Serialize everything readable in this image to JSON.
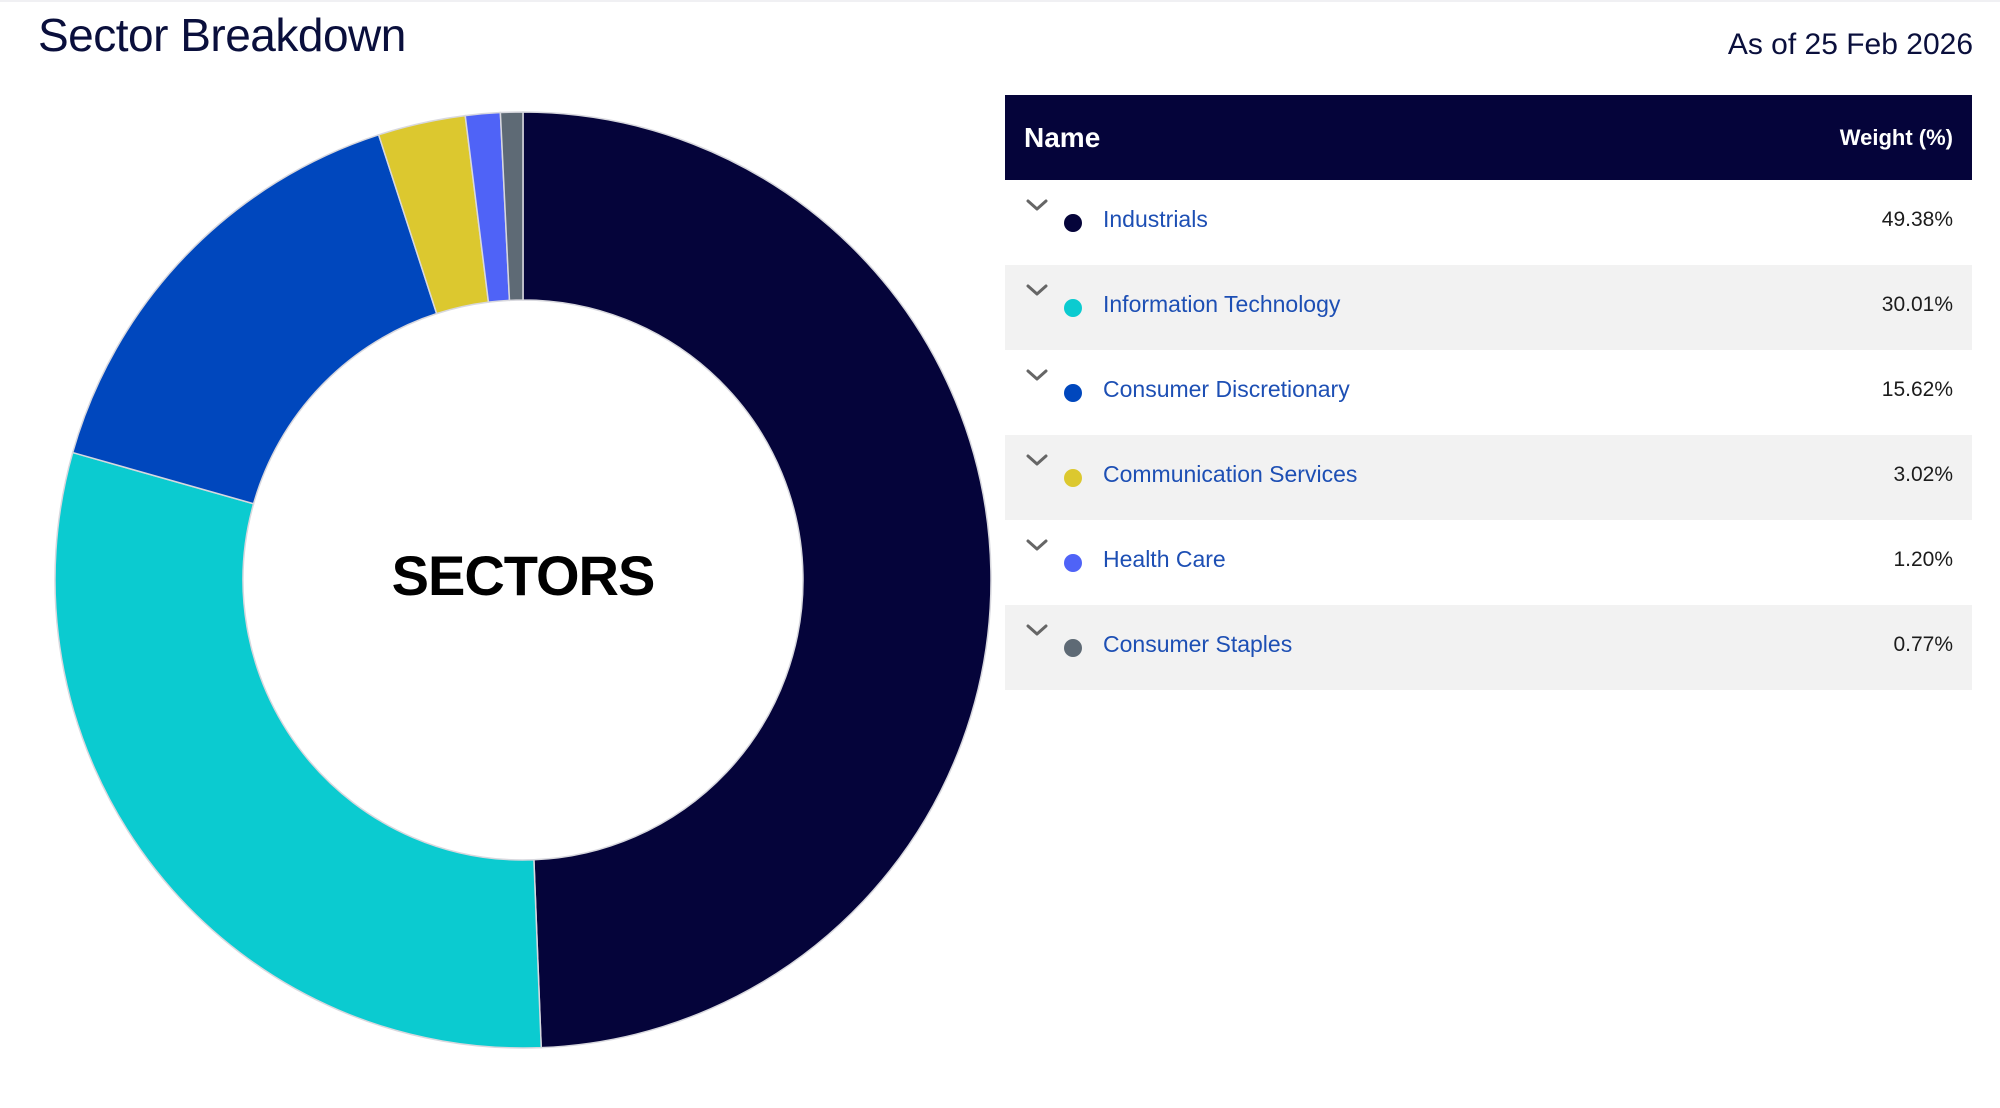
{
  "header": {
    "title": "Sector Breakdown",
    "as_of": "As of 25 Feb 2026"
  },
  "table": {
    "col_name": "Name",
    "col_weight": "Weight (%)",
    "rows": [
      {
        "name": "Industrials",
        "weight": "49.38%",
        "color": "#05043a"
      },
      {
        "name": "Information Technology",
        "weight": "30.01%",
        "color": "#0bcbd0"
      },
      {
        "name": "Consumer Discretionary",
        "weight": "15.62%",
        "color": "#0047bd"
      },
      {
        "name": "Communication Services",
        "weight": "3.02%",
        "color": "#dcc82f"
      },
      {
        "name": "Health Care",
        "weight": "1.20%",
        "color": "#4f63f7"
      },
      {
        "name": "Consumer Staples",
        "weight": "0.77%",
        "color": "#5e6a75"
      }
    ]
  },
  "chart_data": {
    "type": "pie",
    "variant": "donut",
    "center_label": "SECTORS",
    "start": "top, clockwise",
    "categories": [
      "Industrials",
      "Information Technology",
      "Consumer Discretionary",
      "Communication Services",
      "Health Care",
      "Consumer Staples"
    ],
    "values": [
      49.38,
      30.01,
      15.62,
      3.02,
      1.2,
      0.77
    ],
    "colors": [
      "#05043a",
      "#0bcbd0",
      "#0047bd",
      "#dcc82f",
      "#4f63f7",
      "#5e6a75"
    ],
    "legend": "table at right"
  }
}
